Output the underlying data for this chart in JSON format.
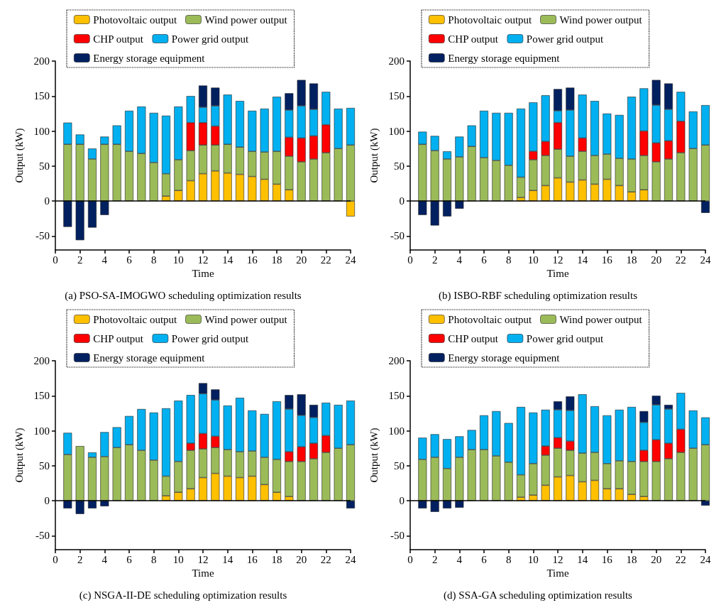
{
  "chart_data": [
    {
      "type": "bar",
      "title": "(a) PSO-SA-IMOGWO scheduling optimization results",
      "xlabel": "Time",
      "ylabel": "Output (kW)",
      "x": [
        1,
        2,
        3,
        4,
        5,
        6,
        7,
        8,
        9,
        10,
        11,
        12,
        13,
        14,
        15,
        16,
        17,
        18,
        19,
        20,
        21,
        22,
        23,
        24
      ],
      "xlim": [
        0,
        24
      ],
      "xticks": [
        0,
        2,
        4,
        6,
        8,
        10,
        12,
        14,
        16,
        18,
        20,
        22,
        24
      ],
      "ylim": [
        -70,
        200
      ],
      "yticks": [
        -50,
        0,
        50,
        100,
        150,
        200
      ],
      "stacked": true,
      "grid": false,
      "legend": "top",
      "ref_lines": [
        {
          "axis": "y",
          "value": 0,
          "color": "#000000"
        }
      ],
      "series": [
        {
          "name": "Photovoltaic output",
          "color": "#ffc000",
          "values": [
            null,
            null,
            null,
            null,
            null,
            null,
            null,
            null,
            7,
            15,
            29,
            39,
            43,
            40,
            38,
            35,
            31,
            24,
            16,
            null,
            null,
            null,
            null,
            -22
          ]
        },
        {
          "name": "Wind power output",
          "color": "#9bbb59",
          "values": [
            81,
            81,
            60,
            81,
            81,
            71,
            68,
            55,
            32,
            44,
            43,
            41,
            37,
            41,
            39,
            36,
            39,
            47,
            48,
            56,
            60,
            69,
            75,
            80
          ]
        },
        {
          "name": "CHP output",
          "color": "#ff0000",
          "values": [
            null,
            null,
            null,
            null,
            null,
            null,
            null,
            null,
            null,
            null,
            40,
            32,
            27,
            null,
            null,
            null,
            null,
            null,
            27,
            34,
            33,
            40,
            null,
            null
          ]
        },
        {
          "name": "Power grid output",
          "color": "#00b0f0",
          "values": [
            31,
            14,
            15,
            11,
            27,
            58,
            67,
            71,
            83,
            76,
            38,
            22,
            29,
            71,
            66,
            58,
            62,
            78,
            39,
            46,
            38,
            47,
            57,
            53
          ]
        },
        {
          "name": "Energy storage equipment",
          "color": "#002060",
          "values": [
            -37,
            -56,
            -38,
            -20,
            null,
            null,
            null,
            null,
            null,
            null,
            null,
            31,
            26,
            null,
            null,
            null,
            null,
            null,
            24,
            37,
            37,
            null,
            null,
            null
          ]
        }
      ]
    },
    {
      "type": "bar",
      "title": "(b) ISBO-RBF scheduling optimization results",
      "xlabel": "Time",
      "ylabel": "Output (kW)",
      "x": [
        1,
        2,
        3,
        4,
        5,
        6,
        7,
        8,
        9,
        10,
        11,
        12,
        13,
        14,
        15,
        16,
        17,
        18,
        19,
        20,
        21,
        22,
        23,
        24
      ],
      "xlim": [
        0,
        24
      ],
      "xticks": [
        0,
        2,
        4,
        6,
        8,
        10,
        12,
        14,
        16,
        18,
        20,
        22,
        24
      ],
      "ylim": [
        -70,
        200
      ],
      "yticks": [
        -50,
        0,
        50,
        100,
        150,
        200
      ],
      "stacked": true,
      "grid": false,
      "legend": "top",
      "ref_lines": [
        {
          "axis": "y",
          "value": 0,
          "color": "#000000"
        }
      ],
      "series": [
        {
          "name": "Photovoltaic output",
          "color": "#ffc000",
          "values": [
            null,
            null,
            null,
            null,
            null,
            null,
            null,
            null,
            5,
            15,
            22,
            33,
            27,
            30,
            24,
            31,
            22,
            13,
            16,
            null,
            null,
            null,
            null,
            null
          ]
        },
        {
          "name": "Wind power output",
          "color": "#9bbb59",
          "values": [
            81,
            72,
            60,
            63,
            78,
            62,
            58,
            51,
            29,
            44,
            43,
            41,
            37,
            41,
            41,
            36,
            39,
            47,
            49,
            56,
            60,
            69,
            75,
            80
          ]
        },
        {
          "name": "CHP output",
          "color": "#ff0000",
          "values": [
            null,
            null,
            null,
            null,
            null,
            null,
            null,
            null,
            null,
            12,
            20,
            38,
            null,
            19,
            null,
            null,
            null,
            null,
            35,
            27,
            26,
            45,
            null,
            null
          ]
        },
        {
          "name": "Power grid output",
          "color": "#00b0f0",
          "values": [
            18,
            21,
            11,
            29,
            30,
            67,
            68,
            75,
            98,
            70,
            66,
            17,
            66,
            62,
            78,
            58,
            62,
            89,
            61,
            54,
            45,
            42,
            53,
            57
          ]
        },
        {
          "name": "Energy storage equipment",
          "color": "#002060",
          "values": [
            -20,
            -35,
            -22,
            -11,
            null,
            null,
            null,
            null,
            null,
            null,
            null,
            31,
            32,
            null,
            null,
            null,
            null,
            null,
            null,
            36,
            37,
            null,
            null,
            -17
          ]
        }
      ]
    },
    {
      "type": "bar",
      "title": "(c) NSGA-II-DE scheduling optimization results",
      "xlabel": "Time",
      "ylabel": "Output (kW)",
      "x": [
        1,
        2,
        3,
        4,
        5,
        6,
        7,
        8,
        9,
        10,
        11,
        12,
        13,
        14,
        15,
        16,
        17,
        18,
        19,
        20,
        21,
        22,
        23,
        24
      ],
      "xlim": [
        0,
        24
      ],
      "xticks": [
        0,
        2,
        4,
        6,
        8,
        10,
        12,
        14,
        16,
        18,
        20,
        22,
        24
      ],
      "ylim": [
        -70,
        200
      ],
      "yticks": [
        -50,
        0,
        50,
        100,
        150,
        200
      ],
      "stacked": true,
      "grid": false,
      "legend": "top",
      "ref_lines": [
        {
          "axis": "y",
          "value": 0,
          "color": "#000000"
        }
      ],
      "series": [
        {
          "name": "Photovoltaic output",
          "color": "#ffc000",
          "values": [
            null,
            null,
            null,
            null,
            null,
            null,
            null,
            null,
            7,
            12,
            17,
            33,
            39,
            35,
            33,
            35,
            23,
            12,
            6,
            null,
            null,
            null,
            null,
            null
          ]
        },
        {
          "name": "Wind power output",
          "color": "#9bbb59",
          "values": [
            66,
            78,
            62,
            63,
            76,
            80,
            72,
            58,
            28,
            44,
            55,
            41,
            37,
            38,
            37,
            36,
            39,
            47,
            50,
            56,
            60,
            69,
            75,
            80
          ]
        },
        {
          "name": "CHP output",
          "color": "#ff0000",
          "values": [
            null,
            null,
            null,
            null,
            null,
            null,
            null,
            null,
            null,
            null,
            10,
            22,
            16,
            null,
            null,
            null,
            null,
            null,
            14,
            21,
            22,
            24,
            null,
            null
          ]
        },
        {
          "name": "Power grid output",
          "color": "#00b0f0",
          "values": [
            31,
            null,
            7,
            35,
            29,
            41,
            59,
            68,
            97,
            87,
            69,
            57,
            52,
            63,
            77,
            58,
            62,
            83,
            61,
            45,
            37,
            47,
            62,
            63
          ]
        },
        {
          "name": "Energy storage equipment",
          "color": "#002060",
          "values": [
            -11,
            -19,
            -11,
            -8,
            null,
            null,
            null,
            null,
            null,
            null,
            null,
            15,
            15,
            null,
            null,
            null,
            null,
            null,
            20,
            30,
            18,
            null,
            null,
            -11
          ]
        }
      ]
    },
    {
      "type": "bar",
      "title": "(d) SSA-GA scheduling optimization results",
      "xlabel": "Time",
      "ylabel": "Output (kW)",
      "x": [
        1,
        2,
        3,
        4,
        5,
        6,
        7,
        8,
        9,
        10,
        11,
        12,
        13,
        14,
        15,
        16,
        17,
        18,
        19,
        20,
        21,
        22,
        23,
        24
      ],
      "xlim": [
        0,
        24
      ],
      "xticks": [
        0,
        2,
        4,
        6,
        8,
        10,
        12,
        14,
        16,
        18,
        20,
        22,
        24
      ],
      "ylim": [
        -70,
        200
      ],
      "yticks": [
        -50,
        0,
        50,
        100,
        150,
        200
      ],
      "stacked": true,
      "grid": false,
      "legend": "top",
      "ref_lines": [
        {
          "axis": "y",
          "value": 0,
          "color": "#000000"
        }
      ],
      "series": [
        {
          "name": "Photovoltaic output",
          "color": "#ffc000",
          "values": [
            null,
            null,
            null,
            null,
            null,
            null,
            null,
            null,
            5,
            8,
            22,
            34,
            36,
            27,
            29,
            17,
            17,
            9,
            6,
            null,
            null,
            null,
            null,
            null
          ]
        },
        {
          "name": "Wind power output",
          "color": "#9bbb59",
          "values": [
            59,
            62,
            46,
            62,
            73,
            73,
            64,
            55,
            32,
            45,
            43,
            41,
            36,
            41,
            40,
            36,
            40,
            47,
            50,
            56,
            60,
            69,
            75,
            80
          ]
        },
        {
          "name": "CHP output",
          "color": "#ff0000",
          "values": [
            null,
            null,
            null,
            null,
            null,
            null,
            null,
            null,
            null,
            null,
            13,
            15,
            13,
            null,
            null,
            null,
            null,
            null,
            16,
            31,
            22,
            33,
            null,
            null
          ]
        },
        {
          "name": "Power grid output",
          "color": "#00b0f0",
          "values": [
            31,
            33,
            42,
            30,
            28,
            49,
            64,
            56,
            97,
            73,
            52,
            40,
            44,
            84,
            66,
            69,
            73,
            78,
            40,
            50,
            49,
            52,
            54,
            39
          ]
        },
        {
          "name": "Energy storage equipment",
          "color": "#002060",
          "values": [
            -11,
            -16,
            -11,
            -10,
            null,
            null,
            null,
            null,
            null,
            null,
            null,
            12,
            20,
            null,
            null,
            null,
            null,
            null,
            16,
            13,
            6,
            null,
            null,
            -7
          ]
        }
      ]
    }
  ]
}
